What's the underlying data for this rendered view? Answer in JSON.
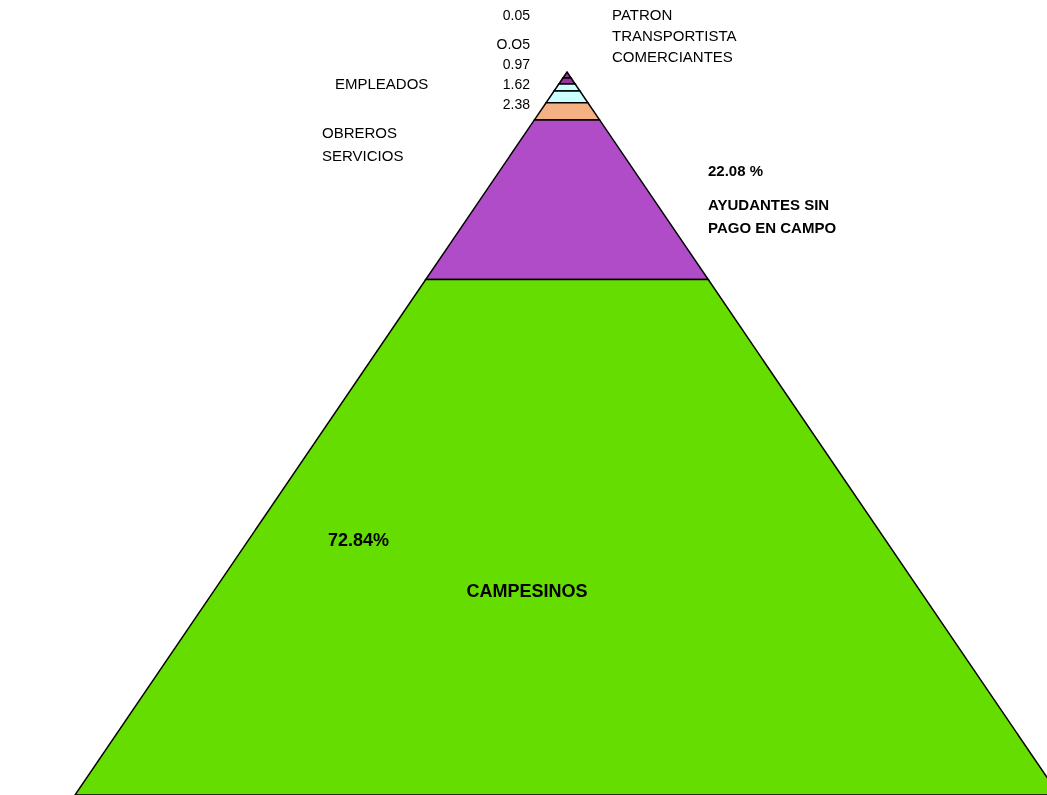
{
  "chart_data": {
    "type": "other",
    "categories": [
      null,
      null,
      null,
      null,
      null,
      "AYUDANTES SIN PAGO EN CAMPO",
      "CAMPESINOS"
    ],
    "values": [
      0.05,
      0.05,
      0.97,
      1.62,
      2.38,
      22.08,
      72.84
    ],
    "value_labels": [
      "0.05",
      "O.O5",
      "0.97",
      "1.62",
      "2.38",
      "22.08 %",
      "72.84%"
    ],
    "colors": [
      "#993399",
      "#993399",
      "#ccffff",
      "#ccffff",
      "#f4b183",
      "#b04cc8",
      "#66dd00"
    ],
    "annotations": [
      "PATRON",
      "TRANSPORTISTA",
      "COMERCIANTES",
      "EMPLEADOS",
      "OBREROS",
      "SERVICIOS"
    ]
  }
}
